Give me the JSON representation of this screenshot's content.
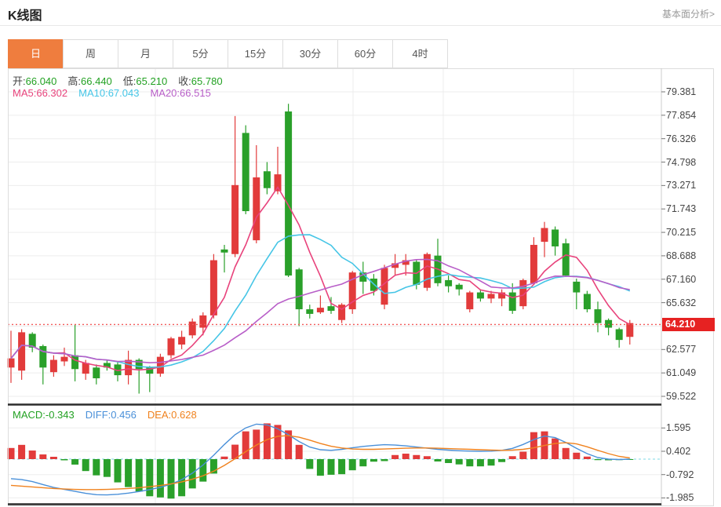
{
  "header": {
    "title": "K线图",
    "link_label": "基本面分析>"
  },
  "tabs": [
    {
      "label": "日",
      "active": true
    },
    {
      "label": "周",
      "active": false
    },
    {
      "label": "月",
      "active": false
    },
    {
      "label": "5分",
      "active": false
    },
    {
      "label": "15分",
      "active": false
    },
    {
      "label": "30分",
      "active": false
    },
    {
      "label": "60分",
      "active": false
    },
    {
      "label": "4时",
      "active": false
    }
  ],
  "info_bar": {
    "ohlc": [
      {
        "label": "开:",
        "value": "66.040"
      },
      {
        "label": "高:",
        "value": "66.440"
      },
      {
        "label": "低:",
        "value": "65.210"
      },
      {
        "label": "收:",
        "value": "65.780"
      }
    ],
    "ohlc_value_color": "#22a122",
    "ma": [
      {
        "label": "MA5:",
        "value": "66.302",
        "color": "#e8437c"
      },
      {
        "label": "MA10:",
        "value": "67.043",
        "color": "#45c5e6"
      },
      {
        "label": "MA20:",
        "value": "66.515",
        "color": "#b85ec8"
      }
    ]
  },
  "macd_bar": [
    {
      "label": "MACD:",
      "value": "-0.343",
      "color": "#22a122"
    },
    {
      "label": "DIFF:",
      "value": "0.456",
      "color": "#4a90d9"
    },
    {
      "label": "DEA:",
      "value": "0.628",
      "color": "#f0821e"
    }
  ],
  "current_price": "64.210",
  "chart_data": {
    "type": "candlestick",
    "panels": [
      "price",
      "macd"
    ],
    "y_axis_tick_labels": [
      "79.381",
      "77.854",
      "76.326",
      "74.798",
      "73.271",
      "71.743",
      "70.215",
      "68.688",
      "67.160",
      "65.632",
      "62.577",
      "61.049",
      "59.522"
    ],
    "y_axis_ticks": [
      79.381,
      77.854,
      76.326,
      74.798,
      73.271,
      71.743,
      70.215,
      68.688,
      67.16,
      65.632,
      62.577,
      61.049,
      59.522
    ],
    "hidden_grid_levels": [
      64.105
    ],
    "ylim": [
      59.522,
      79.381
    ],
    "current_price_value": 64.21,
    "candles": [
      [
        61.4,
        63.8,
        60.4,
        62.0
      ],
      [
        61.2,
        63.9,
        60.6,
        63.7
      ],
      [
        63.6,
        63.7,
        62.4,
        62.7
      ],
      [
        62.8,
        62.9,
        60.3,
        61.4
      ],
      [
        61.1,
        62.2,
        60.8,
        61.9
      ],
      [
        61.8,
        62.7,
        61.5,
        62.1
      ],
      [
        62.2,
        64.2,
        60.5,
        61.3
      ],
      [
        61.0,
        61.9,
        60.6,
        61.7
      ],
      [
        61.4,
        61.6,
        60.3,
        60.7
      ],
      [
        61.7,
        61.9,
        61.2,
        61.4
      ],
      [
        61.6,
        61.8,
        60.5,
        60.9
      ],
      [
        60.9,
        62.5,
        60.3,
        61.9
      ],
      [
        61.9,
        62.0,
        59.7,
        61.3
      ],
      [
        61.4,
        61.5,
        59.8,
        61.0
      ],
      [
        61.0,
        62.3,
        60.8,
        62.1
      ],
      [
        62.2,
        63.4,
        62.0,
        63.3
      ],
      [
        62.9,
        63.8,
        62.6,
        63.4
      ],
      [
        63.5,
        64.6,
        63.3,
        64.4
      ],
      [
        64.0,
        65.0,
        63.5,
        64.8
      ],
      [
        64.8,
        68.8,
        64.6,
        68.4
      ],
      [
        69.1,
        69.4,
        67.6,
        68.9
      ],
      [
        68.8,
        77.8,
        68.6,
        73.3
      ],
      [
        76.7,
        77.2,
        71.4,
        71.6
      ],
      [
        69.7,
        75.9,
        69.5,
        73.8
      ],
      [
        74.2,
        74.8,
        72.7,
        73.1
      ],
      [
        72.9,
        75.8,
        72.7,
        74.0
      ],
      [
        78.1,
        78.6,
        67.3,
        67.4
      ],
      [
        67.8,
        67.9,
        64.1,
        65.2
      ],
      [
        65.2,
        65.5,
        64.6,
        64.9
      ],
      [
        65.0,
        66.1,
        64.9,
        65.3
      ],
      [
        65.4,
        66.0,
        64.9,
        65.1
      ],
      [
        64.5,
        65.6,
        64.3,
        65.5
      ],
      [
        65.2,
        67.7,
        64.9,
        67.6
      ],
      [
        67.6,
        68.3,
        66.2,
        67.0
      ],
      [
        67.2,
        67.5,
        66.1,
        66.4
      ],
      [
        65.5,
        68.1,
        65.2,
        67.9
      ],
      [
        67.9,
        68.8,
        67.4,
        68.2
      ],
      [
        68.1,
        68.8,
        67.4,
        68.4
      ],
      [
        68.3,
        68.4,
        66.5,
        66.8
      ],
      [
        66.6,
        68.9,
        66.4,
        68.8
      ],
      [
        68.7,
        69.8,
        66.7,
        66.9
      ],
      [
        67.1,
        67.4,
        66.3,
        66.7
      ],
      [
        66.8,
        66.9,
        66.1,
        66.5
      ],
      [
        65.2,
        66.4,
        65.0,
        66.3
      ],
      [
        66.3,
        66.5,
        65.7,
        65.9
      ],
      [
        65.9,
        66.4,
        65.6,
        66.2
      ],
      [
        65.9,
        66.5,
        65.4,
        66.3
      ],
      [
        66.3,
        66.9,
        64.9,
        65.1
      ],
      [
        65.4,
        67.2,
        65.2,
        67.1
      ],
      [
        66.9,
        69.9,
        66.8,
        69.4
      ],
      [
        69.6,
        70.9,
        68.6,
        70.5
      ],
      [
        70.4,
        70.6,
        68.7,
        69.3
      ],
      [
        69.5,
        69.8,
        67.3,
        67.4
      ],
      [
        67.0,
        67.2,
        65.2,
        66.3
      ],
      [
        66.2,
        66.4,
        65.0,
        65.2
      ],
      [
        65.2,
        65.7,
        63.7,
        64.3
      ],
      [
        64.5,
        64.6,
        63.5,
        64.0
      ],
      [
        63.9,
        64.0,
        62.7,
        63.2
      ],
      [
        63.4,
        64.5,
        62.9,
        64.3
      ]
    ],
    "ma_periods": [
      5,
      10,
      20
    ],
    "macd": {
      "y_tick_labels": [
        "1.595",
        "0.402",
        "-0.792",
        "-1.985"
      ],
      "y_ticks": [
        1.595,
        0.402,
        -0.792,
        -1.985
      ],
      "hist": [
        0.57,
        0.73,
        0.44,
        0.24,
        0.12,
        -0.06,
        -0.28,
        -0.61,
        -0.83,
        -0.91,
        -1.19,
        -1.43,
        -1.66,
        -1.9,
        -1.96,
        -2.02,
        -1.9,
        -1.5,
        -1.15,
        -0.74,
        0.13,
        0.74,
        1.42,
        1.51,
        1.83,
        1.75,
        1.47,
        0.73,
        -0.5,
        -0.85,
        -0.8,
        -0.77,
        -0.57,
        -0.37,
        -0.13,
        -0.1,
        0.21,
        0.28,
        0.21,
        0.15,
        -0.12,
        -0.2,
        -0.27,
        -0.37,
        -0.37,
        -0.33,
        -0.15,
        0.15,
        0.38,
        1.38,
        1.42,
        1.06,
        0.57,
        0.33,
        0.13,
        -0.05,
        -0.06,
        -0.05,
        -0.04
      ],
      "diff": [
        -1.0,
        -1.05,
        -1.15,
        -1.3,
        -1.45,
        -1.55,
        -1.65,
        -1.75,
        -1.82,
        -1.83,
        -1.8,
        -1.74,
        -1.66,
        -1.56,
        -1.44,
        -1.28,
        -1.05,
        -0.72,
        -0.3,
        0.2,
        0.75,
        1.25,
        1.6,
        1.79,
        1.75,
        1.55,
        1.25,
        0.9,
        0.62,
        0.48,
        0.45,
        0.5,
        0.58,
        0.65,
        0.7,
        0.74,
        0.72,
        0.68,
        0.62,
        0.56,
        0.5,
        0.46,
        0.43,
        0.41,
        0.4,
        0.41,
        0.45,
        0.55,
        0.75,
        1.0,
        1.18,
        1.1,
        0.85,
        0.55,
        0.28,
        0.08,
        0.0,
        -0.02,
        0.0
      ],
      "dea": [
        -1.34,
        -1.38,
        -1.42,
        -1.46,
        -1.5,
        -1.53,
        -1.55,
        -1.56,
        -1.56,
        -1.55,
        -1.53,
        -1.5,
        -1.46,
        -1.41,
        -1.35,
        -1.27,
        -1.17,
        -1.03,
        -0.85,
        -0.62,
        -0.32,
        0.02,
        0.38,
        0.72,
        1.0,
        1.17,
        1.2,
        1.12,
        0.97,
        0.8,
        0.66,
        0.57,
        0.52,
        0.5,
        0.5,
        0.52,
        0.54,
        0.56,
        0.57,
        0.57,
        0.56,
        0.54,
        0.52,
        0.5,
        0.48,
        0.46,
        0.45,
        0.46,
        0.5,
        0.58,
        0.7,
        0.8,
        0.84,
        0.78,
        0.63,
        0.45,
        0.28,
        0.14,
        0.06
      ]
    },
    "colors": {
      "up": "#e23b3b",
      "down": "#2aa02a",
      "ma5": "#e8437c",
      "ma10": "#45c5e6",
      "ma20": "#b85ec8",
      "diff": "#4a90d9",
      "dea": "#f0821e",
      "price_line": "#f25a5a",
      "price_tag_bg": "#e62222",
      "zero_dash": "#7fd9e5",
      "accent_tab": "#ef7d3e"
    }
  }
}
